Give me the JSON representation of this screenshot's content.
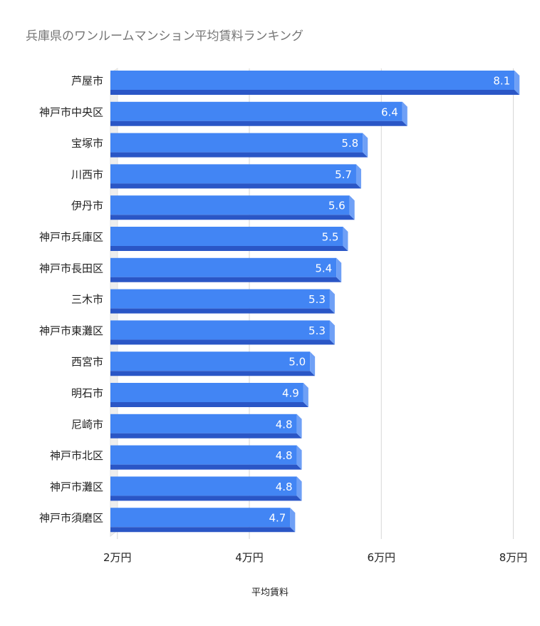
{
  "chart_data": {
    "type": "bar",
    "orientation": "horizontal",
    "title": "兵庫県のワンルームマンション平均賃料ランキング",
    "xlabel": "平均賃料",
    "ylabel": "",
    "xlim": [
      1.9,
      8
    ],
    "xticks": [
      {
        "value": 2,
        "label": "2万円"
      },
      {
        "value": 4,
        "label": "4万円"
      },
      {
        "value": 6,
        "label": "6万円"
      },
      {
        "value": 8,
        "label": "8万円"
      }
    ],
    "categories": [
      "芦屋市",
      "神戸市中央区",
      "宝塚市",
      "川西市",
      "伊丹市",
      "神戸市兵庫区",
      "神戸市長田区",
      "三木市",
      "神戸市東灘区",
      "西宮市",
      "明石市",
      "尼崎市",
      "神戸市北区",
      "神戸市灘区",
      "神戸市須磨区"
    ],
    "values": [
      8.1,
      6.4,
      5.8,
      5.7,
      5.6,
      5.5,
      5.4,
      5.3,
      5.3,
      5.0,
      4.9,
      4.8,
      4.8,
      4.8,
      4.7
    ],
    "value_labels": [
      "8.1",
      "6.4",
      "5.8",
      "5.7",
      "5.6",
      "5.5",
      "5.4",
      "5.3",
      "5.3",
      "5.0",
      "4.9",
      "4.8",
      "4.8",
      "4.8",
      "4.7"
    ],
    "grid": true,
    "legend": "none",
    "bar_color": "#4285f4",
    "bar_shadow_color": "#2a56c6",
    "bar_edge_color": "#6fa0f6"
  }
}
